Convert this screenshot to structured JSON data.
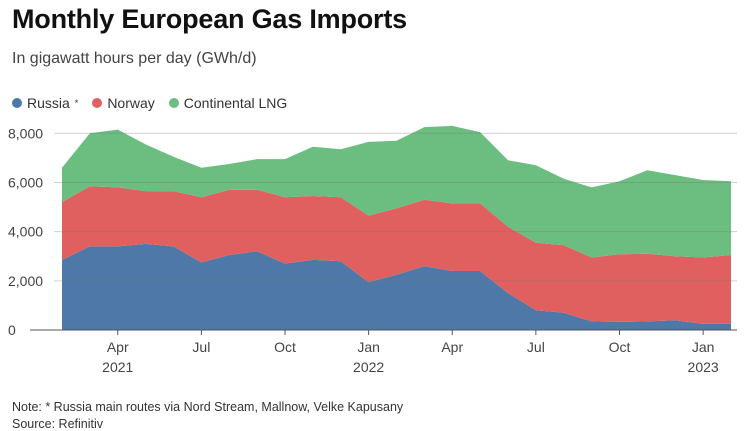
{
  "title": "Monthly European Gas Imports",
  "subtitle": "In gigawatt hours per day (GWh/d)",
  "note": "Note: * Russia main routes via Nord Stream, Mallnow, Velke Kapusany",
  "source": "Source: Refinitiv",
  "colors": {
    "russia": "#4e78a8",
    "norway": "#e0605f",
    "lng": "#6bbd80",
    "grid": "#cfcfcf",
    "axis": "#555555"
  },
  "chart_data": {
    "type": "area",
    "stacked": true,
    "x": [
      "2021-02",
      "2021-03",
      "2021-04",
      "2021-05",
      "2021-06",
      "2021-07",
      "2021-08",
      "2021-09",
      "2021-10",
      "2021-11",
      "2021-12",
      "2022-01",
      "2022-02",
      "2022-03",
      "2022-04",
      "2022-05",
      "2022-06",
      "2022-07",
      "2022-08",
      "2022-09",
      "2022-10",
      "2022-11",
      "2022-12",
      "2023-01",
      "2023-02"
    ],
    "series": [
      {
        "name": "Russia",
        "legend_marker": "*",
        "color": "#4e78a8",
        "values": [
          2850,
          3400,
          3400,
          3500,
          3400,
          2750,
          3050,
          3200,
          2700,
          2850,
          2800,
          1950,
          2250,
          2600,
          2400,
          2400,
          1500,
          800,
          700,
          350,
          330,
          350,
          400,
          250,
          250
        ]
      },
      {
        "name": "Norway",
        "color": "#e0605f",
        "values": [
          2350,
          2450,
          2400,
          2150,
          2250,
          2650,
          2650,
          2500,
          2700,
          2600,
          2600,
          2700,
          2700,
          2700,
          2750,
          2750,
          2700,
          2750,
          2750,
          2600,
          2750,
          2750,
          2600,
          2700,
          2800
        ]
      },
      {
        "name": "Continental LNG",
        "color": "#6bbd80",
        "values": [
          1400,
          2150,
          2350,
          1900,
          1400,
          1200,
          1050,
          1250,
          1550,
          2000,
          1950,
          3000,
          2750,
          2950,
          3150,
          2900,
          2700,
          3150,
          2700,
          2850,
          2970,
          3400,
          3300,
          3150,
          3000
        ]
      }
    ],
    "ylim": [
      0,
      8500
    ],
    "yticks": [
      0,
      2000,
      4000,
      6000,
      8000
    ],
    "ytick_labels": [
      "0",
      "2,000",
      "4,000",
      "6,000",
      "8,000"
    ],
    "xticks": [
      {
        "at": "2021-04",
        "month": "Apr",
        "year": "2021"
      },
      {
        "at": "2021-07",
        "month": "Jul",
        "year": ""
      },
      {
        "at": "2021-10",
        "month": "Oct",
        "year": ""
      },
      {
        "at": "2022-01",
        "month": "Jan",
        "year": "2022"
      },
      {
        "at": "2022-04",
        "month": "Apr",
        "year": ""
      },
      {
        "at": "2022-07",
        "month": "Jul",
        "year": ""
      },
      {
        "at": "2022-10",
        "month": "Oct",
        "year": ""
      },
      {
        "at": "2023-01",
        "month": "Jan",
        "year": "2023"
      }
    ],
    "grid": true,
    "legend_position": "top-left"
  }
}
